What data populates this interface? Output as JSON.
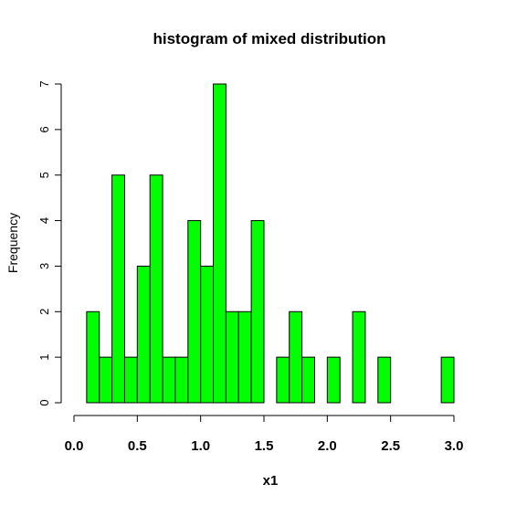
{
  "chart_data": {
    "type": "bar",
    "title": "histogram of mixed distribution",
    "xlabel": "x1",
    "ylabel": "Frequency",
    "bar_color": "#00ff00",
    "bin_width": 0.1,
    "bin_starts": [
      0.1,
      0.2,
      0.3,
      0.4,
      0.5,
      0.6,
      0.7,
      0.8,
      0.9,
      1.0,
      1.1,
      1.2,
      1.3,
      1.4,
      1.5,
      1.6,
      1.7,
      1.8,
      1.9,
      2.0,
      2.1,
      2.2,
      2.3,
      2.4,
      2.5,
      2.6,
      2.7,
      2.8,
      2.9
    ],
    "values": [
      2,
      1,
      5,
      1,
      3,
      5,
      1,
      1,
      4,
      3,
      7,
      2,
      2,
      4,
      0,
      1,
      2,
      1,
      0,
      1,
      0,
      2,
      0,
      1,
      0,
      0,
      0,
      0,
      1
    ],
    "xlim": [
      0.0,
      3.0
    ],
    "ylim": [
      0,
      7
    ],
    "x_ticks": [
      "0.0",
      "0.5",
      "1.0",
      "1.5",
      "2.0",
      "2.5",
      "3.0"
    ],
    "y_ticks": [
      "0",
      "1",
      "2",
      "3",
      "4",
      "5",
      "6",
      "7"
    ],
    "grid": false
  }
}
